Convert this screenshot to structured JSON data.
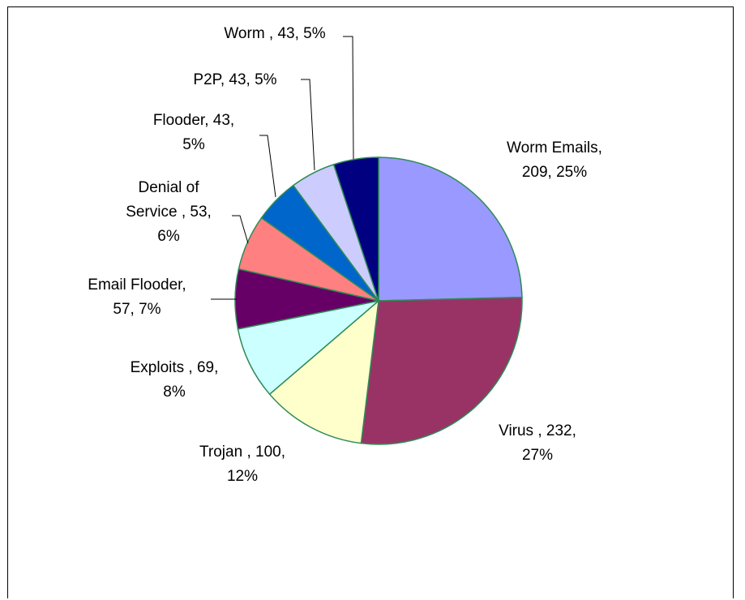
{
  "chart_data": {
    "type": "pie",
    "title": "",
    "slices": [
      {
        "name": "Worm Emails",
        "value": 209,
        "percent": "25%",
        "color": "#9999ff",
        "label_lines": [
          "Worm Emails,",
          "209, 25%"
        ]
      },
      {
        "name": "Virus",
        "value": 232,
        "percent": "27%",
        "color": "#993366",
        "label_lines": [
          "Virus , 232,",
          "27%"
        ]
      },
      {
        "name": "Trojan",
        "value": 100,
        "percent": "12%",
        "color": "#ffffcc",
        "label_lines": [
          "Trojan , 100,",
          "12%"
        ]
      },
      {
        "name": "Exploits",
        "value": 69,
        "percent": "8%",
        "color": "#ccffff",
        "label_lines": [
          "Exploits , 69,",
          "8%"
        ]
      },
      {
        "name": "Email Flooder",
        "value": 57,
        "percent": "7%",
        "color": "#660066",
        "label_lines": [
          "Email Flooder,",
          "57, 7%"
        ]
      },
      {
        "name": "Denial of Service",
        "value": 53,
        "percent": "6%",
        "color": "#ff8080",
        "label_lines": [
          "Denial of",
          "Service , 53,",
          "6%"
        ]
      },
      {
        "name": "Flooder",
        "value": 43,
        "percent": "5%",
        "color": "#0066cc",
        "label_lines": [
          "Flooder, 43,",
          "5%"
        ]
      },
      {
        "name": "P2P",
        "value": 43,
        "percent": "5%",
        "color": "#ccccff",
        "label_lines": [
          "P2P, 43, 5%"
        ]
      },
      {
        "name": "Worm",
        "value": 43,
        "percent": "5%",
        "color": "#000080",
        "label_lines": [
          "Worm , 43, 5%"
        ]
      }
    ],
    "slice_border_color": "#2e8b57",
    "leader_line_color": "#000000"
  }
}
